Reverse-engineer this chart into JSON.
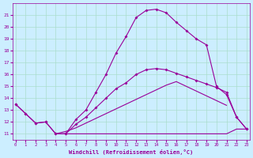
{
  "xlabel": "Windchill (Refroidissement éolien,°C)",
  "bg_color": "#cceeff",
  "grid_color": "#aaddcc",
  "line_color": "#990099",
  "x_ticks": [
    0,
    1,
    2,
    3,
    4,
    5,
    6,
    7,
    8,
    9,
    10,
    11,
    12,
    13,
    14,
    15,
    16,
    17,
    18,
    19,
    20,
    21,
    22,
    23
  ],
  "y_ticks": [
    11,
    12,
    13,
    14,
    15,
    16,
    17,
    18,
    19,
    20,
    21
  ],
  "xlim": [
    -0.3,
    23.3
  ],
  "ylim": [
    10.5,
    22.0
  ],
  "curve_big_x": [
    0,
    1,
    2,
    3,
    4,
    5,
    6,
    7,
    8,
    9,
    10,
    11,
    12,
    13,
    14,
    15,
    16,
    17,
    18,
    19,
    20,
    21,
    22,
    23
  ],
  "curve_big_y": [
    13.5,
    12.7,
    11.9,
    12.0,
    11.0,
    11.0,
    12.2,
    13.0,
    14.5,
    16.0,
    17.8,
    19.2,
    20.8,
    21.4,
    21.5,
    21.2,
    20.4,
    19.7,
    19.0,
    18.5,
    15.0,
    14.3,
    12.4,
    11.4
  ],
  "curve_mid_x": [
    0,
    1,
    2,
    3,
    4,
    5,
    6,
    7,
    8,
    9,
    10,
    11,
    12,
    13,
    14,
    15,
    16,
    17,
    18,
    19,
    20,
    21,
    22,
    23
  ],
  "curve_mid_y": [
    13.5,
    12.7,
    11.9,
    12.0,
    11.0,
    11.0,
    11.8,
    12.4,
    13.2,
    14.0,
    14.8,
    15.3,
    16.0,
    16.4,
    16.5,
    16.4,
    16.1,
    15.8,
    15.5,
    15.2,
    14.9,
    14.5,
    12.4,
    11.4
  ],
  "curve_diag_upper_x": [
    4,
    5,
    6,
    7,
    8,
    9,
    10,
    11,
    12,
    13,
    14,
    15,
    16,
    17,
    18,
    19,
    20,
    21
  ],
  "curve_diag_upper_y": [
    11.0,
    11.2,
    11.5,
    11.9,
    12.3,
    12.7,
    13.1,
    13.5,
    13.9,
    14.3,
    14.7,
    15.1,
    15.4,
    15.0,
    14.6,
    14.2,
    13.8,
    13.4
  ],
  "curve_diag_lower_x": [
    4,
    5,
    6,
    7,
    8,
    9,
    10,
    11,
    12,
    13,
    14,
    15,
    16,
    17,
    18,
    19,
    20,
    21,
    22,
    23
  ],
  "curve_diag_lower_y": [
    11.0,
    11.0,
    11.0,
    11.0,
    11.0,
    11.0,
    11.0,
    11.0,
    11.0,
    11.0,
    11.0,
    11.0,
    11.0,
    11.0,
    11.0,
    11.0,
    11.0,
    11.0,
    11.4,
    11.4
  ]
}
